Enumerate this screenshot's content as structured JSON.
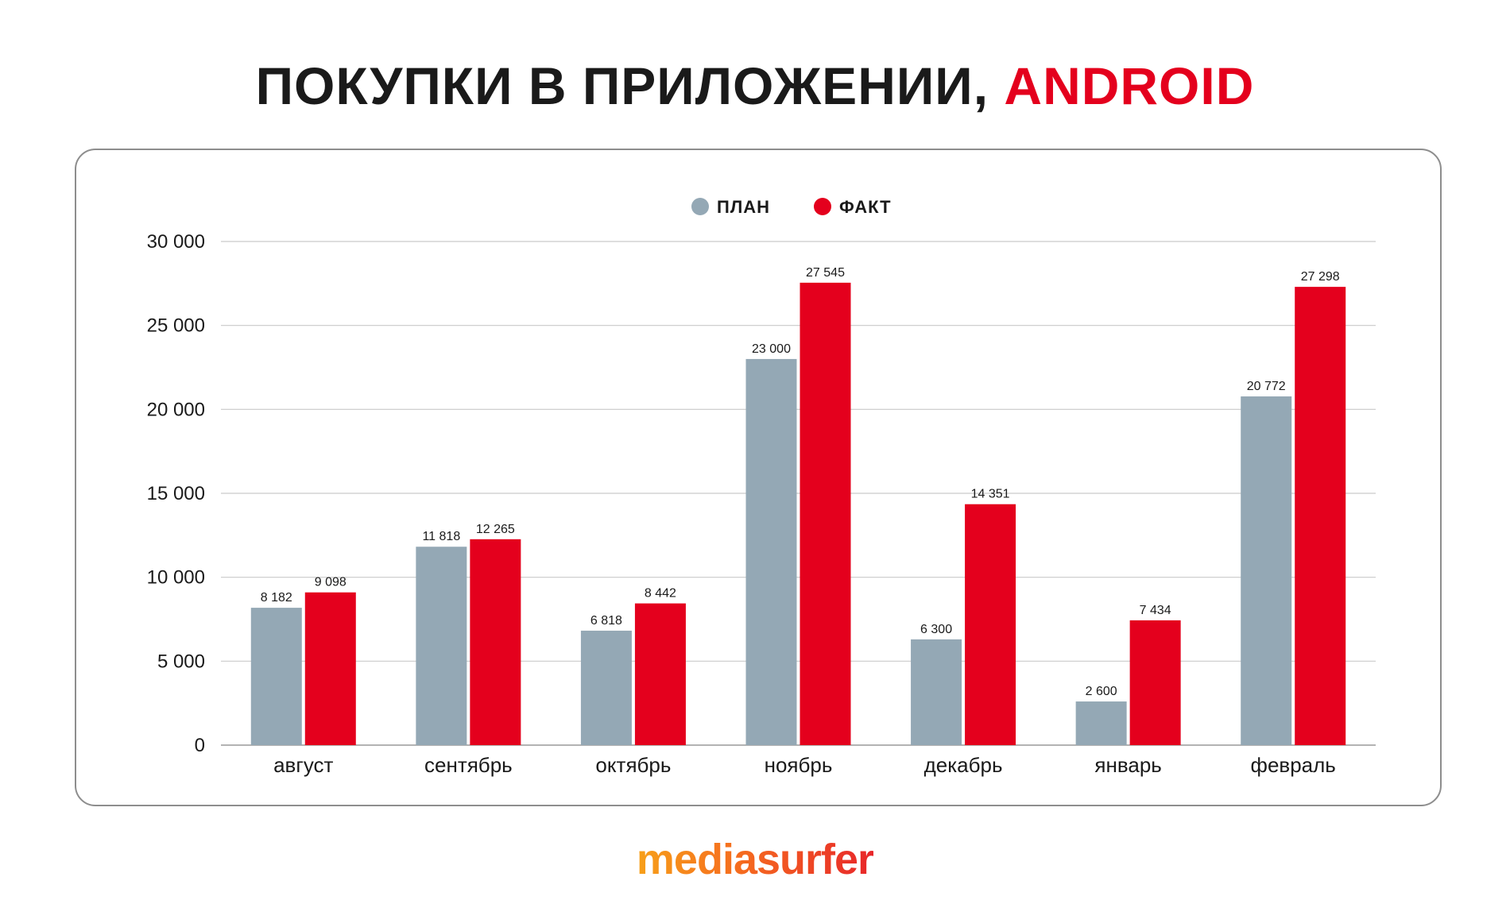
{
  "header": {
    "title_main": "ПОКУПКИ В ПРИЛОЖЕНИИ, ",
    "title_accent": "ANDROID"
  },
  "brand": {
    "logo_text": "mediasurfer"
  },
  "colors": {
    "plan": "#94a8b5",
    "fact": "#e4001d",
    "accent": "#e4001d"
  },
  "chart_data": {
    "type": "bar",
    "categories": [
      "август",
      "сентябрь",
      "октябрь",
      "ноябрь",
      "декабрь",
      "январь",
      "февраль"
    ],
    "series": [
      {
        "name": "ПЛАН",
        "values": [
          8182,
          11818,
          6818,
          23000,
          6300,
          2600,
          20772
        ]
      },
      {
        "name": "ФАКТ",
        "values": [
          9098,
          12265,
          8442,
          27545,
          14351,
          7434,
          27298
        ]
      }
    ],
    "data_labels": {
      "ПЛАН": [
        "8 182",
        "11 818",
        "6 818",
        "23 000",
        "6 300",
        "2 600",
        "20 772"
      ],
      "ФАКТ": [
        "9 098",
        "12 265",
        "8 442",
        "27 545",
        "14 351",
        "7 434",
        "27 298"
      ]
    },
    "y_ticks": [
      0,
      5000,
      10000,
      15000,
      20000,
      25000,
      30000
    ],
    "y_tick_labels": [
      "0",
      "5 000",
      "10 000",
      "15 000",
      "20 000",
      "25 000",
      "30 000"
    ],
    "ylim": [
      0,
      30000
    ],
    "grid": true,
    "legend_position": "top-center"
  }
}
